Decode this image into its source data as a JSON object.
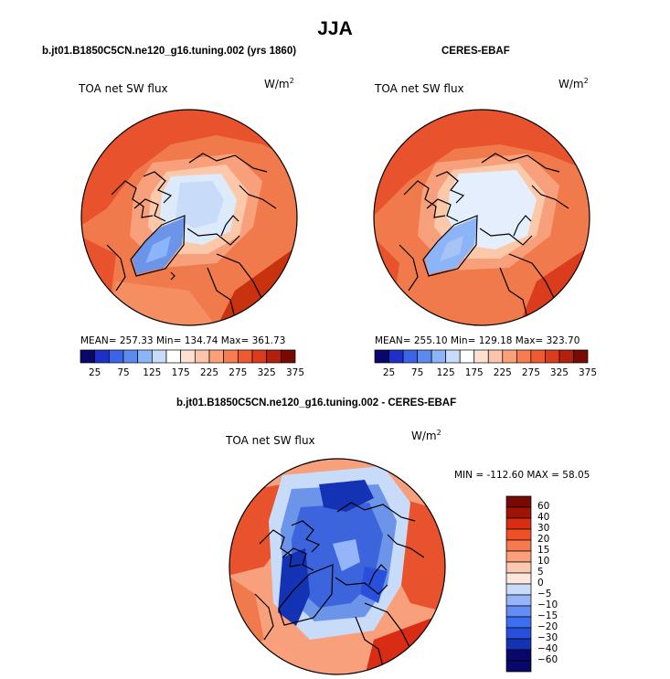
{
  "figure": {
    "title": "JJA"
  },
  "panels": [
    {
      "title": "b.jt01.B1850C5CN.ne120_g16.tuning.002 (yrs 1860)",
      "field_label": "TOA net SW flux",
      "units_base": "W/m",
      "units_exp": "2",
      "stats": "MEAN= 257.33  Min= 134.74  Max= 361.73"
    },
    {
      "title": "CERES-EBAF",
      "field_label": "TOA net SW flux",
      "units_base": "W/m",
      "units_exp": "2",
      "stats": "MEAN= 255.10  Min= 129.18  Max= 323.70"
    },
    {
      "title": "b.jt01.B1850C5CN.ne120_g16.tuning.002 - CERES-EBAF",
      "field_label": "TOA net SW flux",
      "units_base": "W/m",
      "units_exp": "2",
      "stats": "MIN = -112.60 MAX =  58.05"
    }
  ],
  "abs_colorbar": {
    "colors": [
      "#08086a",
      "#1e30c8",
      "#3c64e6",
      "#5a8cf0",
      "#8cb4f8",
      "#c8dcfa",
      "#ffffff",
      "#fde0d2",
      "#fcc4aa",
      "#fca078",
      "#f87c52",
      "#f05a32",
      "#dc3c1e",
      "#b4200e",
      "#780a04"
    ],
    "labels": [
      "25",
      "75",
      "125",
      "175",
      "225",
      "275",
      "325",
      "375"
    ]
  },
  "diff_colorbar": {
    "colors": [
      "#08086a",
      "#1432b4",
      "#2850dc",
      "#3c6ef0",
      "#648cf4",
      "#96b4f8",
      "#c8dcfa",
      "#fde6dc",
      "#fcc8b0",
      "#fca07c",
      "#f87850",
      "#f05028",
      "#d82c14",
      "#a01408",
      "#780a04"
    ],
    "labels": [
      "60",
      "40",
      "30",
      "20",
      "15",
      "10",
      "5",
      "0",
      "−5",
      "−10",
      "−15",
      "−20",
      "−30",
      "−40",
      "−60"
    ]
  },
  "map_colors": {
    "deep_red": "#c8320f",
    "red": "#e8522c",
    "orange": "#f07a4c",
    "salmon": "#f8a07c",
    "peach": "#fcc8aa",
    "pale": "#ddeafa",
    "light_blue": "#a8c4f4",
    "blue": "#6c94e8",
    "mid_blue": "#3c64dc",
    "dark_blue": "#1432b4"
  }
}
